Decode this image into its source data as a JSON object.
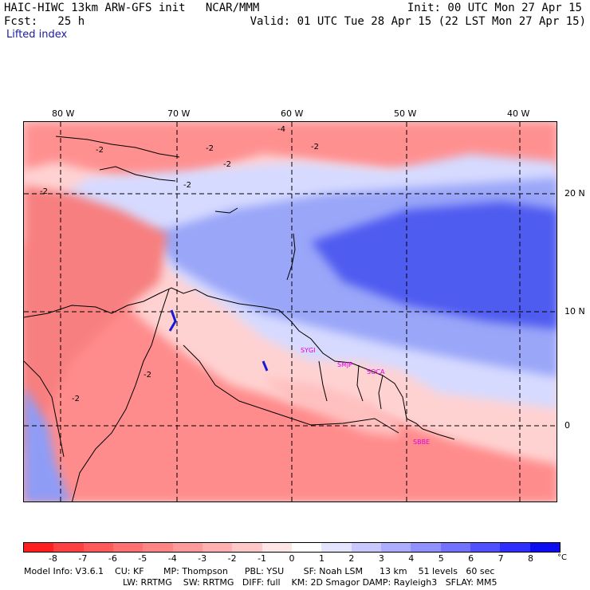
{
  "header": {
    "title": "HAIC-HIWC 13km ARW-GFS init   NCAR/MMM",
    "forecast": "Fcst:   25 h",
    "field": "Lifted index",
    "init": "Init: 00 UTC Mon 27 Apr 15",
    "valid": "Valid: 01 UTC Tue 28 Apr 15 (22 LST Mon 27 Apr 15)"
  },
  "map": {
    "lon_labels": [
      "80 W",
      "70 W",
      "60 W",
      "50 W",
      "40 W"
    ],
    "lat_labels": [
      "20 N",
      "10 N",
      "0"
    ],
    "cities": [
      "SYGI",
      "SMJP",
      "SOCA",
      "SBBE"
    ],
    "contour_labels": [
      "-4",
      "-2",
      "-2",
      "-2",
      "-2",
      "-2",
      "-2",
      "-2",
      "-2"
    ]
  },
  "colorbar": {
    "ticks": [
      "-8",
      "-7",
      "-6",
      "-5",
      "-4",
      "-3",
      "-2",
      "-1",
      "0",
      "1",
      "2",
      "3",
      "4",
      "5",
      "6",
      "7",
      "8"
    ],
    "unit": "°C",
    "colors": [
      "#ff1f1f",
      "#ff4040",
      "#ff5a5a",
      "#ff7070",
      "#ff8585",
      "#ff9a9a",
      "#ffb0b0",
      "#ffc8c8",
      "#ffe6e6",
      "#ffffff",
      "#e4e4ff",
      "#c8c8ff",
      "#adadff",
      "#9090ff",
      "#7272ff",
      "#5050ff",
      "#2e2eff",
      "#0c0cf0"
    ]
  },
  "footer": {
    "line1": "Model Info: V3.6.1    CU: KF       MP: Thompson      PBL: YSU       SF: Noah LSM      13 km    51 levels   60 sec",
    "line2": "LW: RRTMG    SW: RRTMG   DIFF: full    KM: 2D Smagor DAMP: Rayleigh3   SFLAY: MM5"
  },
  "colors": {
    "positive_region": "#4f5cf0",
    "negative_region": "#f77f7f",
    "city_label": "#e000e0"
  }
}
